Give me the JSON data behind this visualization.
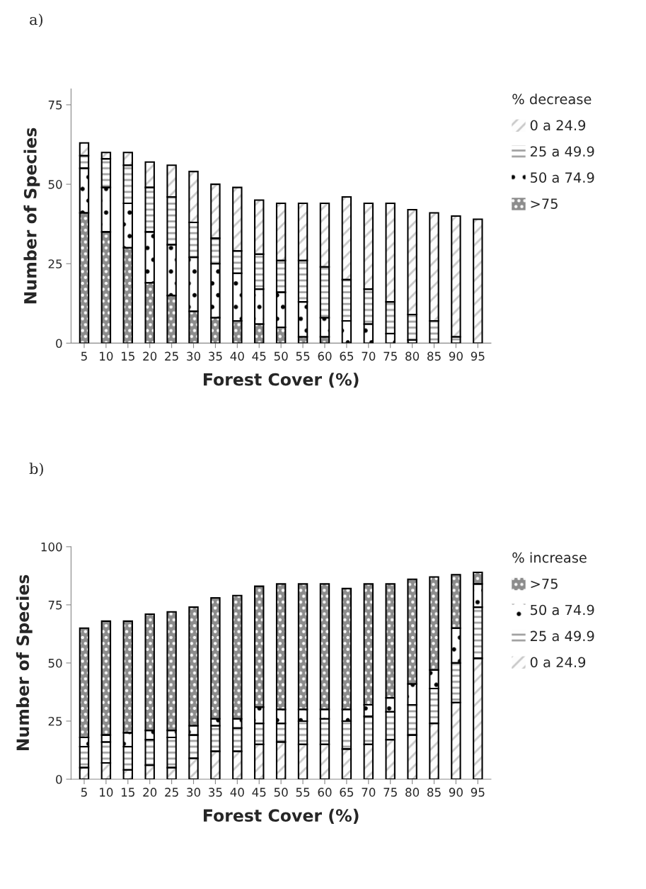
{
  "chart_data": [
    {
      "type": "bar",
      "title": "a)",
      "xlabel": "Forest Cover (%)",
      "ylabel": "Number of Species",
      "legend_title": "% decrease",
      "legend": "right",
      "stacked": true,
      "categories": [
        "5",
        "10",
        "15",
        "20",
        "25",
        "30",
        "35",
        "40",
        "45",
        "50",
        "55",
        "60",
        "65",
        "70",
        "75",
        "80",
        "85",
        "90",
        "95"
      ],
      "ylim": [
        0,
        80
      ],
      "yticks": [
        0,
        25,
        50,
        75
      ],
      "series": [
        {
          "name": ">75",
          "color": "#8c8c8c",
          "values": [
            41,
            35,
            30,
            19,
            15,
            10,
            8,
            7,
            6,
            5,
            2,
            2,
            0,
            0,
            0,
            0,
            0,
            0,
            0
          ]
        },
        {
          "name": "50 a 74.9",
          "color": "#ffffff",
          "values": [
            14,
            14,
            14,
            16,
            16,
            17,
            17,
            15,
            11,
            11,
            11,
            6,
            7,
            6,
            3,
            1,
            0,
            0,
            0
          ]
        },
        {
          "name": "25 a 49.9",
          "color": "#fefefe",
          "values": [
            4,
            9,
            12,
            14,
            15,
            11,
            8,
            7,
            11,
            10,
            13,
            16,
            13,
            11,
            10,
            8,
            7,
            2,
            0
          ]
        },
        {
          "name": "0 a 24.9",
          "color": "#fdfdfd",
          "values": [
            4,
            2,
            4,
            8,
            10,
            16,
            17,
            20,
            17,
            18,
            18,
            20,
            26,
            27,
            31,
            33,
            34,
            38,
            39
          ]
        }
      ]
    },
    {
      "type": "bar",
      "title": "b)",
      "xlabel": "Forest Cover (%)",
      "ylabel": "Number of Species",
      "legend_title": "% increase",
      "legend": "right",
      "stacked": true,
      "categories": [
        "5",
        "10",
        "15",
        "20",
        "25",
        "30",
        "35",
        "40",
        "45",
        "50",
        "55",
        "60",
        "65",
        "70",
        "75",
        "80",
        "85",
        "90",
        "95"
      ],
      "ylim": [
        0,
        100
      ],
      "yticks": [
        0,
        25,
        50,
        75,
        100
      ],
      "series": [
        {
          "name": "0 a 24.9",
          "color": "#fdfdfd",
          "values": [
            5,
            7,
            4,
            6,
            5,
            9,
            12,
            12,
            15,
            16,
            15,
            15,
            13,
            15,
            17,
            19,
            24,
            33,
            52
          ]
        },
        {
          "name": "25 a 49.9",
          "color": "#fefefe",
          "values": [
            9,
            9,
            10,
            11,
            13,
            10,
            11,
            10,
            9,
            8,
            10,
            11,
            12,
            12,
            12,
            13,
            15,
            17,
            22
          ]
        },
        {
          "name": "50 a 74.9",
          "color": "#ffffff",
          "values": [
            4,
            3,
            6,
            4,
            3,
            4,
            3,
            4,
            7,
            6,
            5,
            4,
            5,
            5,
            6,
            9,
            8,
            15,
            10
          ]
        },
        {
          "name": ">75",
          "color": "#8c8c8c",
          "values": [
            47,
            49,
            48,
            50,
            51,
            51,
            52,
            53,
            52,
            54,
            54,
            54,
            52,
            52,
            49,
            45,
            40,
            23,
            5
          ]
        }
      ]
    }
  ]
}
